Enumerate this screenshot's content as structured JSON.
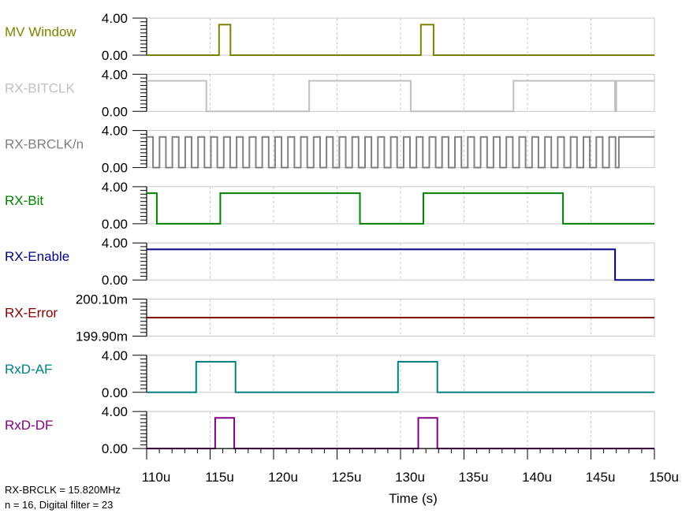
{
  "chart_data": {
    "type": "line",
    "xlabel": "Time (s)",
    "x_range": [
      110,
      150
    ],
    "x_ticks": [
      "110u",
      "115u",
      "120u",
      "125u",
      "130u",
      "135u",
      "140u",
      "145u",
      "150u"
    ],
    "notes": [
      "RX-BRCLK = 15.820MHz",
      "n = 16, Digital filter = 23"
    ],
    "series": [
      {
        "name": "MV Window",
        "color": "#808000",
        "y_range": [
          0,
          4
        ],
        "y_labels": [
          "4.00",
          "0.00"
        ],
        "x": [
          110,
          115.7,
          115.7,
          116.6,
          116.6,
          131.6,
          131.6,
          132.6,
          132.6,
          150
        ],
        "values": [
          0,
          0,
          3.3,
          3.3,
          0,
          0,
          3.3,
          3.3,
          0,
          0
        ]
      },
      {
        "name": "RX-BITCLK",
        "color": "#c0c0c0",
        "y_range": [
          0,
          4
        ],
        "y_labels": [
          "4.00",
          "0.00"
        ],
        "x": [
          110,
          114.7,
          114.7,
          122.8,
          122.8,
          130.8,
          130.8,
          138.9,
          138.9,
          146.9,
          146.9,
          147.0,
          147.0,
          150
        ],
        "values": [
          3.3,
          3.3,
          0,
          0,
          3.3,
          3.3,
          0,
          0,
          3.3,
          3.3,
          0,
          0,
          3.3,
          3.3
        ]
      },
      {
        "name": "RX-BRCLK/n",
        "color": "#808080",
        "y_range": [
          0,
          4
        ],
        "y_labels": [
          "4.00",
          "0.00"
        ],
        "clock": {
          "start": 110.0,
          "half_period": 0.506,
          "end": 147.2,
          "start_level": 3.3,
          "final_level": 3.3
        }
      },
      {
        "name": "RX-Bit",
        "color": "#008000",
        "y_range": [
          0,
          4
        ],
        "y_labels": [
          "4.00",
          "0.00"
        ],
        "x": [
          110,
          110.8,
          110.8,
          115.8,
          115.8,
          126.8,
          126.8,
          131.8,
          131.8,
          142.8,
          142.8,
          150
        ],
        "values": [
          3.3,
          3.3,
          0,
          0,
          3.3,
          3.3,
          0,
          0,
          3.3,
          3.3,
          0,
          0
        ]
      },
      {
        "name": "RX-Enable",
        "color": "#000080",
        "y_range": [
          0,
          4
        ],
        "y_labels": [
          "4.00",
          "0.00"
        ],
        "x": [
          110,
          146.9,
          146.9,
          150
        ],
        "values": [
          3.3,
          3.3,
          0,
          0
        ]
      },
      {
        "name": "RX-Error",
        "color": "#800000",
        "y_range": [
          199.9,
          200.1
        ],
        "y_labels": [
          "200.10m",
          "199.90m"
        ],
        "x": [
          110,
          150
        ],
        "values": [
          200.0,
          200.0
        ]
      },
      {
        "name": "RxD-AF",
        "color": "#008080",
        "y_range": [
          0,
          4
        ],
        "y_labels": [
          "4.00",
          "0.00"
        ],
        "x": [
          110,
          113.9,
          113.9,
          117.0,
          117.0,
          129.8,
          129.8,
          132.9,
          132.9,
          150
        ],
        "values": [
          0,
          0,
          3.3,
          3.3,
          0,
          0,
          3.3,
          3.3,
          0,
          0
        ]
      },
      {
        "name": "RxD-DF",
        "color": "#800080",
        "y_range": [
          0,
          4
        ],
        "y_labels": [
          "4.00",
          "0.00"
        ],
        "x": [
          110,
          115.4,
          115.4,
          116.9,
          116.9,
          131.4,
          131.4,
          132.9,
          132.9,
          150
        ],
        "values": [
          0,
          0,
          3.3,
          3.3,
          0,
          0,
          3.3,
          3.3,
          0,
          0
        ]
      }
    ]
  }
}
